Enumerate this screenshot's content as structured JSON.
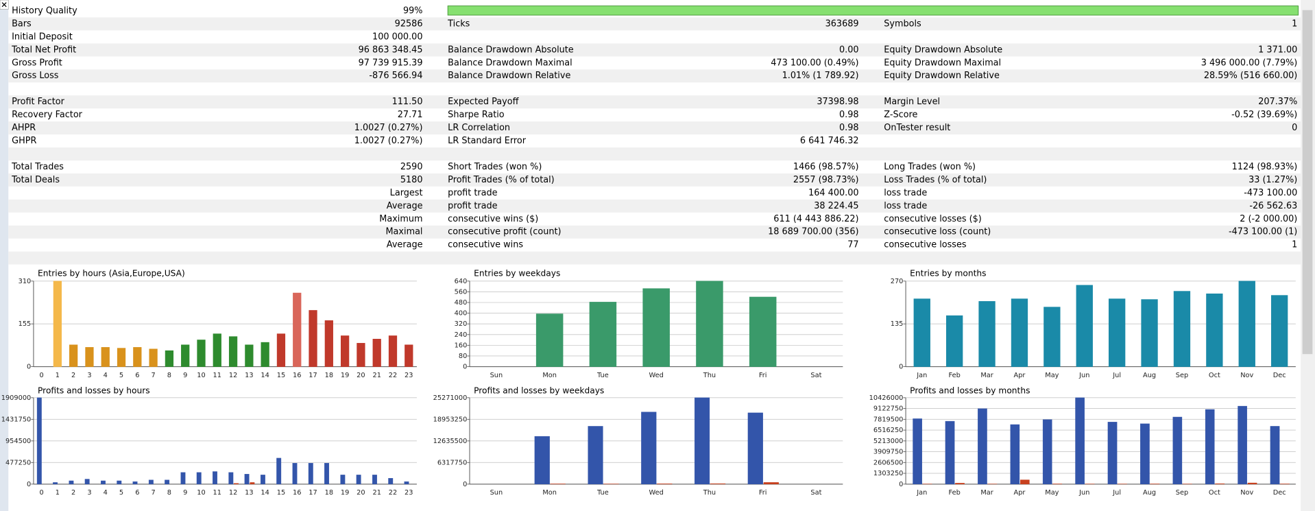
{
  "report": {
    "rows": [
      [
        {
          "label": "History Quality",
          "value": "99%"
        }
      ],
      [
        {
          "label": "Bars",
          "value": "92586"
        },
        {
          "label": "Ticks",
          "value": "363689"
        },
        {
          "label": "Symbols",
          "value": "1"
        }
      ],
      [
        {
          "label": "Initial Deposit",
          "value": "100 000.00"
        }
      ],
      [
        {
          "label": "Total Net Profit",
          "value": "96 863 348.45"
        },
        {
          "label": "Balance Drawdown Absolute",
          "value": "0.00"
        },
        {
          "label": "Equity Drawdown Absolute",
          "value": "1 371.00"
        }
      ],
      [
        {
          "label": "Gross Profit",
          "value": "97 739 915.39"
        },
        {
          "label": "Balance Drawdown Maximal",
          "value": "473 100.00 (0.49%)"
        },
        {
          "label": "Equity Drawdown Maximal",
          "value": "3 496 000.00 (7.79%)"
        }
      ],
      [
        {
          "label": "Gross Loss",
          "value": "-876 566.94"
        },
        {
          "label": "Balance Drawdown Relative",
          "value": "1.01% (1 789.92)"
        },
        {
          "label": "Equity Drawdown Relative",
          "value": "28.59% (516 660.00)"
        }
      ],
      null,
      [
        {
          "label": "Profit Factor",
          "value": "111.50"
        },
        {
          "label": "Expected Payoff",
          "value": "37398.98"
        },
        {
          "label": "Margin Level",
          "value": "207.37%"
        }
      ],
      [
        {
          "label": "Recovery Factor",
          "value": "27.71"
        },
        {
          "label": "Sharpe Ratio",
          "value": "0.98"
        },
        {
          "label": "Z-Score",
          "value": "-0.52 (39.69%)"
        }
      ],
      [
        {
          "label": "AHPR",
          "value": "1.0027 (0.27%)"
        },
        {
          "label": "LR Correlation",
          "value": "0.98"
        },
        {
          "label": "OnTester result",
          "value": "0"
        }
      ],
      [
        {
          "label": "GHPR",
          "value": "1.0027 (0.27%)"
        },
        {
          "label": "LR Standard Error",
          "value": "6 641 746.32"
        }
      ],
      null,
      [
        {
          "label": "Total Trades",
          "value": "2590"
        },
        {
          "label": "Short Trades (won %)",
          "value": "1466 (98.57%)"
        },
        {
          "label": "Long Trades (won %)",
          "value": "1124 (98.93%)"
        }
      ],
      [
        {
          "label": "Total Deals",
          "value": "5180"
        },
        {
          "label": "Profit Trades (% of total)",
          "value": "2557 (98.73%)"
        },
        {
          "label": "Loss Trades (% of total)",
          "value": "33 (1.27%)"
        }
      ],
      [
        {
          "value": "Largest"
        },
        {
          "label": "profit trade",
          "value": "164 400.00"
        },
        {
          "label": "loss trade",
          "value": "-473 100.00"
        }
      ],
      [
        {
          "value": "Average"
        },
        {
          "label": "profit trade",
          "value": "38 224.45"
        },
        {
          "label": "loss trade",
          "value": "-26 562.63"
        }
      ],
      [
        {
          "value": "Maximum"
        },
        {
          "label": "consecutive wins ($)",
          "value": "611 (4 443 886.22)"
        },
        {
          "label": "consecutive losses ($)",
          "value": "2 (-2 000.00)"
        }
      ],
      [
        {
          "value": "Maximal"
        },
        {
          "label": "consecutive profit (count)",
          "value": "18 689 700.00 (356)"
        },
        {
          "label": "consecutive loss (count)",
          "value": "-473 100.00 (1)"
        }
      ],
      [
        {
          "value": "Average"
        },
        {
          "label": "consecutive wins",
          "value": "77"
        },
        {
          "label": "consecutive losses",
          "value": "1"
        }
      ],
      null
    ]
  },
  "chart_data": [
    {
      "type": "bar",
      "title": "Entries by hours (Asia,Europe,USA)",
      "categories": [
        "0",
        "1",
        "2",
        "3",
        "4",
        "5",
        "6",
        "7",
        "8",
        "9",
        "10",
        "11",
        "12",
        "13",
        "14",
        "15",
        "16",
        "17",
        "18",
        "19",
        "20",
        "21",
        "22",
        "23"
      ],
      "values": [
        0,
        310,
        79,
        70,
        70,
        67,
        70,
        64,
        58,
        79,
        97,
        119,
        109,
        79,
        88,
        119,
        267,
        204,
        167,
        112,
        85,
        100,
        112,
        79
      ],
      "colors": [
        "#d9921c",
        "#f4b84a",
        "#d9921c",
        "#d9921c",
        "#d9921c",
        "#d9921c",
        "#d9921c",
        "#d9921c",
        "#2e8b2e",
        "#2e8b2e",
        "#2e8b2e",
        "#2e8b2e",
        "#2e8b2e",
        "#2e8b2e",
        "#2e8b2e",
        "#c0392b",
        "#d9665a",
        "#c0392b",
        "#c0392b",
        "#c0392b",
        "#c0392b",
        "#c0392b",
        "#c0392b",
        "#c0392b"
      ],
      "ylim": [
        0,
        310
      ],
      "yticks": [
        0,
        155,
        310
      ],
      "grid": true
    },
    {
      "type": "bar",
      "title": "Entries by weekdays",
      "categories": [
        "Sun",
        "Mon",
        "Tue",
        "Wed",
        "Thu",
        "Fri",
        "Sat"
      ],
      "values": [
        0,
        395,
        483,
        584,
        640,
        521,
        0
      ],
      "color": "#3a9a6a",
      "ylim": [
        0,
        640
      ],
      "yticks": [
        0,
        80,
        160,
        240,
        320,
        400,
        480,
        560,
        640
      ],
      "grid": true
    },
    {
      "type": "bar",
      "title": "Entries by months",
      "categories": [
        "Jan",
        "Feb",
        "Mar",
        "Apr",
        "May",
        "Jun",
        "Jul",
        "Aug",
        "Sep",
        "Oct",
        "Nov",
        "Dec"
      ],
      "values": [
        214,
        161,
        206,
        214,
        188,
        257,
        214,
        212,
        238,
        230,
        270,
        225
      ],
      "color": "#1a8aa8",
      "ylim": [
        0,
        270
      ],
      "yticks": [
        0,
        135,
        270
      ],
      "grid": true
    },
    {
      "type": "bar",
      "title": "Profits and losses by hours",
      "categories": [
        "0",
        "1",
        "2",
        "3",
        "4",
        "5",
        "6",
        "7",
        "8",
        "9",
        "10",
        "11",
        "12",
        "13",
        "14",
        "15",
        "16",
        "17",
        "18",
        "19",
        "20",
        "21",
        "22",
        "23"
      ],
      "series": [
        {
          "color": "#3355aa",
          "values": [
            1909000,
            37000,
            74000,
            111000,
            74000,
            74000,
            56000,
            93000,
            93000,
            259000,
            259000,
            278000,
            259000,
            222000,
            204000,
            575000,
            463000,
            463000,
            463000,
            204000,
            204000,
            204000,
            130000,
            56000
          ]
        },
        {
          "color": "#c8401e",
          "values": [
            0,
            0,
            0,
            0,
            0,
            0,
            0,
            0,
            0,
            0,
            0,
            0,
            18000,
            37000,
            0,
            0,
            0,
            0,
            0,
            0,
            0,
            0,
            0,
            0
          ]
        }
      ],
      "ylim": [
        0,
        1909000
      ],
      "yticks": [
        0,
        477250,
        954500,
        1431750,
        1909000
      ],
      "grid": true
    },
    {
      "type": "bar",
      "title": "Profits and losses by weekdays",
      "categories": [
        "Sun",
        "Mon",
        "Tue",
        "Wed",
        "Thu",
        "Fri",
        "Sat"
      ],
      "series": [
        {
          "color": "#3355aa",
          "values": [
            0,
            13985000,
            16929000,
            21100000,
            25271000,
            20855000,
            0
          ]
        },
        {
          "color": "#c8401e",
          "values": [
            0,
            80000,
            60000,
            120000,
            150000,
            500000,
            0
          ]
        }
      ],
      "ylim": [
        0,
        25271000
      ],
      "yticks": [
        0,
        6317750,
        12635500,
        18953250,
        25271000
      ],
      "grid": true
    },
    {
      "type": "bar",
      "title": "Profits and losses by months",
      "categories": [
        "Jan",
        "Feb",
        "Mar",
        "Apr",
        "May",
        "Jun",
        "Jul",
        "Aug",
        "Sep",
        "Oct",
        "Nov",
        "Dec"
      ],
      "series": [
        {
          "color": "#3355aa",
          "values": [
            7895000,
            7592000,
            9110000,
            7187000,
            7794000,
            10426000,
            7490000,
            7288000,
            8098000,
            9009000,
            9414000,
            6985000
          ]
        },
        {
          "color": "#c8401e",
          "values": [
            20000,
            120000,
            20000,
            520000,
            30000,
            20000,
            20000,
            30000,
            20000,
            60000,
            150000,
            30000
          ]
        }
      ],
      "ylim": [
        0,
        10426000
      ],
      "yticks": [
        0,
        1303250,
        2606500,
        3909750,
        5213000,
        6516250,
        7819500,
        9122750,
        10426000
      ],
      "grid": true
    }
  ]
}
